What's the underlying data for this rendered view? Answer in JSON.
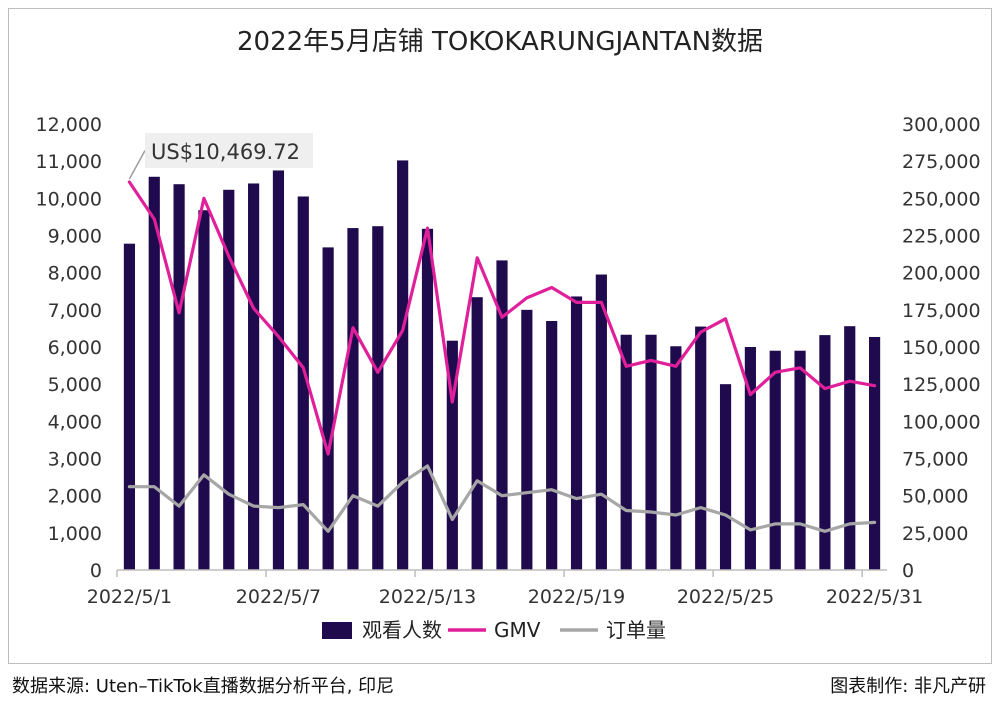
{
  "chart_data": {
    "type": "bar-line-combo",
    "title": "2022年5月店铺 TOKOKARUNGJANTAN数据",
    "categories": [
      "2022/5/1",
      "2022/5/2",
      "2022/5/3",
      "2022/5/4",
      "2022/5/5",
      "2022/5/6",
      "2022/5/7",
      "2022/5/8",
      "2022/5/9",
      "2022/5/10",
      "2022/5/11",
      "2022/5/12",
      "2022/5/13",
      "2022/5/14",
      "2022/5/15",
      "2022/5/16",
      "2022/5/17",
      "2022/5/18",
      "2022/5/19",
      "2022/5/20",
      "2022/5/21",
      "2022/5/22",
      "2022/5/23",
      "2022/5/24",
      "2022/5/25",
      "2022/5/26",
      "2022/5/27",
      "2022/5/28",
      "2022/5/29",
      "2022/5/30",
      "2022/5/31"
    ],
    "x_tick_labels": [
      "2022/5/1",
      "2022/5/7",
      "2022/5/13",
      "2022/5/19",
      "2022/5/25",
      "2022/5/31"
    ],
    "x_tick_every": 6,
    "left_axis": {
      "min": 0,
      "max": 12000,
      "step": 1000,
      "tick_labels": [
        "0",
        "1,000",
        "2,000",
        "3,000",
        "4,000",
        "5,000",
        "6,000",
        "7,000",
        "8,000",
        "9,000",
        "10,000",
        "11,000",
        "12,000"
      ]
    },
    "right_axis": {
      "min": 0,
      "max": 300000,
      "step": 25000,
      "tick_labels": [
        "0",
        "25,000",
        "50,000",
        "75,000",
        "100,000",
        "125,000",
        "150,000",
        "175,000",
        "200,000",
        "225,000",
        "250,000",
        "275,000",
        "300,000"
      ]
    },
    "series": [
      {
        "name": "观看人数",
        "type": "bar",
        "axis": "left",
        "color": "#1f0a4d",
        "values": [
          8780,
          10580,
          10380,
          9680,
          10230,
          10400,
          10750,
          10050,
          8680,
          9200,
          9250,
          11020,
          9180,
          6170,
          7340,
          8330,
          7000,
          6700,
          7360,
          7950,
          6330,
          6330,
          6020,
          6550,
          5000,
          6000,
          5900,
          5900,
          6320,
          6560,
          6270
        ]
      },
      {
        "name": "GMV",
        "type": "line",
        "axis": "right",
        "color": "#e0209a",
        "values": [
          261000,
          236000,
          173000,
          250000,
          211000,
          176000,
          157000,
          136000,
          78000,
          163000,
          133000,
          161000,
          230000,
          113000,
          210000,
          170000,
          183000,
          190000,
          180000,
          180000,
          137000,
          141000,
          137000,
          160000,
          169000,
          118000,
          133000,
          136000,
          122000,
          127000,
          124000
        ]
      },
      {
        "name": "订单量",
        "type": "line",
        "axis": "right",
        "color": "#a6a6a6",
        "values": [
          56000,
          56000,
          43000,
          64000,
          51000,
          43000,
          42000,
          44000,
          26000,
          50000,
          43000,
          59000,
          70000,
          34000,
          60000,
          50000,
          52000,
          54000,
          48000,
          51000,
          40000,
          39000,
          37000,
          42000,
          37000,
          27000,
          31000,
          31000,
          26000,
          31000,
          32000
        ]
      }
    ],
    "annotation": {
      "text": "US$10,469.72",
      "series": "GMV",
      "index": 0
    },
    "legend_position": "bottom-center",
    "grid": false
  },
  "footer": {
    "source": "数据来源: Uten–TikTok直播数据分析平台, 印尼",
    "credit": "图表制作: 非凡产研"
  }
}
